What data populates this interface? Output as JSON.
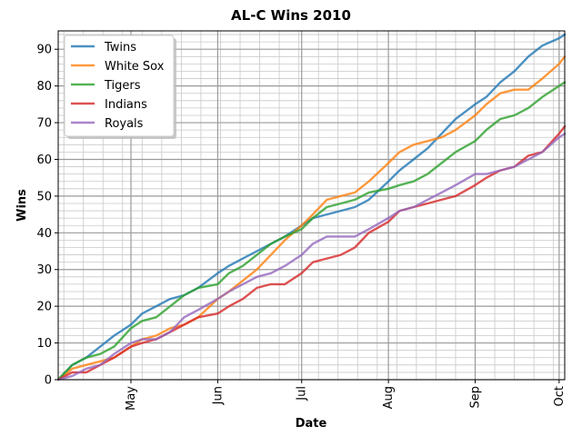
{
  "chart_data": {
    "type": "line",
    "title": "AL-C Wins 2010",
    "xlabel": "Date",
    "ylabel": "Wins",
    "x_axis": "date",
    "xlim": [
      "2010-04-05",
      "2010-10-03"
    ],
    "ylim": [
      0,
      95
    ],
    "xticks": [
      {
        "date": "2010-05-01",
        "label": "May"
      },
      {
        "date": "2010-06-01",
        "label": "Jun"
      },
      {
        "date": "2010-07-01",
        "label": "Jul"
      },
      {
        "date": "2010-08-01",
        "label": "Aug"
      },
      {
        "date": "2010-09-01",
        "label": "Sep"
      },
      {
        "date": "2010-10-01",
        "label": "Oct"
      }
    ],
    "yticks": [
      0,
      10,
      20,
      30,
      40,
      50,
      60,
      70,
      80,
      90
    ],
    "grid": true,
    "legend_position": "top-left",
    "series": [
      {
        "name": "Twins",
        "color": "#1f77b4",
        "points": [
          [
            "2010-04-05",
            0
          ],
          [
            "2010-04-10",
            4
          ],
          [
            "2010-04-15",
            6
          ],
          [
            "2010-04-20",
            9
          ],
          [
            "2010-04-25",
            12
          ],
          [
            "2010-05-01",
            15
          ],
          [
            "2010-05-05",
            18
          ],
          [
            "2010-05-10",
            20
          ],
          [
            "2010-05-15",
            22
          ],
          [
            "2010-05-20",
            23
          ],
          [
            "2010-05-25",
            25
          ],
          [
            "2010-06-01",
            29
          ],
          [
            "2010-06-05",
            31
          ],
          [
            "2010-06-10",
            33
          ],
          [
            "2010-06-15",
            35
          ],
          [
            "2010-06-20",
            37
          ],
          [
            "2010-06-25",
            39
          ],
          [
            "2010-07-01",
            42
          ],
          [
            "2010-07-05",
            44
          ],
          [
            "2010-07-10",
            45
          ],
          [
            "2010-07-15",
            46
          ],
          [
            "2010-07-20",
            47
          ],
          [
            "2010-07-25",
            49
          ],
          [
            "2010-08-01",
            54
          ],
          [
            "2010-08-05",
            57
          ],
          [
            "2010-08-10",
            60
          ],
          [
            "2010-08-15",
            63
          ],
          [
            "2010-08-20",
            67
          ],
          [
            "2010-08-25",
            71
          ],
          [
            "2010-09-01",
            75
          ],
          [
            "2010-09-05",
            77
          ],
          [
            "2010-09-10",
            81
          ],
          [
            "2010-09-15",
            84
          ],
          [
            "2010-09-20",
            88
          ],
          [
            "2010-09-25",
            91
          ],
          [
            "2010-10-01",
            93
          ],
          [
            "2010-10-03",
            94
          ]
        ]
      },
      {
        "name": "White Sox",
        "color": "#ff7f0e",
        "points": [
          [
            "2010-04-05",
            0
          ],
          [
            "2010-04-10",
            3
          ],
          [
            "2010-04-15",
            4
          ],
          [
            "2010-04-20",
            5
          ],
          [
            "2010-04-25",
            6
          ],
          [
            "2010-05-01",
            9
          ],
          [
            "2010-05-05",
            11
          ],
          [
            "2010-05-10",
            12
          ],
          [
            "2010-05-15",
            14
          ],
          [
            "2010-05-20",
            15
          ],
          [
            "2010-05-25",
            17
          ],
          [
            "2010-06-01",
            22
          ],
          [
            "2010-06-05",
            24
          ],
          [
            "2010-06-10",
            27
          ],
          [
            "2010-06-15",
            30
          ],
          [
            "2010-06-20",
            34
          ],
          [
            "2010-06-25",
            38
          ],
          [
            "2010-07-01",
            42
          ],
          [
            "2010-07-05",
            45
          ],
          [
            "2010-07-10",
            49
          ],
          [
            "2010-07-15",
            50
          ],
          [
            "2010-07-20",
            51
          ],
          [
            "2010-07-25",
            54
          ],
          [
            "2010-08-01",
            59
          ],
          [
            "2010-08-05",
            62
          ],
          [
            "2010-08-10",
            64
          ],
          [
            "2010-08-15",
            65
          ],
          [
            "2010-08-20",
            66
          ],
          [
            "2010-08-25",
            68
          ],
          [
            "2010-09-01",
            72
          ],
          [
            "2010-09-05",
            75
          ],
          [
            "2010-09-10",
            78
          ],
          [
            "2010-09-15",
            79
          ],
          [
            "2010-09-20",
            79
          ],
          [
            "2010-09-25",
            82
          ],
          [
            "2010-10-01",
            86
          ],
          [
            "2010-10-03",
            88
          ]
        ]
      },
      {
        "name": "Tigers",
        "color": "#2ca02c",
        "points": [
          [
            "2010-04-05",
            0
          ],
          [
            "2010-04-10",
            4
          ],
          [
            "2010-04-15",
            6
          ],
          [
            "2010-04-20",
            7
          ],
          [
            "2010-04-25",
            9
          ],
          [
            "2010-05-01",
            14
          ],
          [
            "2010-05-05",
            16
          ],
          [
            "2010-05-10",
            17
          ],
          [
            "2010-05-15",
            20
          ],
          [
            "2010-05-20",
            23
          ],
          [
            "2010-05-25",
            25
          ],
          [
            "2010-06-01",
            26
          ],
          [
            "2010-06-05",
            29
          ],
          [
            "2010-06-10",
            31
          ],
          [
            "2010-06-15",
            34
          ],
          [
            "2010-06-20",
            37
          ],
          [
            "2010-06-25",
            39
          ],
          [
            "2010-07-01",
            41
          ],
          [
            "2010-07-05",
            44
          ],
          [
            "2010-07-10",
            47
          ],
          [
            "2010-07-15",
            48
          ],
          [
            "2010-07-20",
            49
          ],
          [
            "2010-07-25",
            51
          ],
          [
            "2010-08-01",
            52
          ],
          [
            "2010-08-05",
            53
          ],
          [
            "2010-08-10",
            54
          ],
          [
            "2010-08-15",
            56
          ],
          [
            "2010-08-20",
            59
          ],
          [
            "2010-08-25",
            62
          ],
          [
            "2010-09-01",
            65
          ],
          [
            "2010-09-05",
            68
          ],
          [
            "2010-09-10",
            71
          ],
          [
            "2010-09-15",
            72
          ],
          [
            "2010-09-20",
            74
          ],
          [
            "2010-09-25",
            77
          ],
          [
            "2010-10-01",
            80
          ],
          [
            "2010-10-03",
            81
          ]
        ]
      },
      {
        "name": "Indians",
        "color": "#d62728",
        "points": [
          [
            "2010-04-05",
            0
          ],
          [
            "2010-04-10",
            2
          ],
          [
            "2010-04-15",
            2
          ],
          [
            "2010-04-20",
            4
          ],
          [
            "2010-04-25",
            6
          ],
          [
            "2010-05-01",
            9
          ],
          [
            "2010-05-05",
            10
          ],
          [
            "2010-05-10",
            11
          ],
          [
            "2010-05-15",
            13
          ],
          [
            "2010-05-20",
            15
          ],
          [
            "2010-05-25",
            17
          ],
          [
            "2010-06-01",
            18
          ],
          [
            "2010-06-05",
            20
          ],
          [
            "2010-06-10",
            22
          ],
          [
            "2010-06-15",
            25
          ],
          [
            "2010-06-20",
            26
          ],
          [
            "2010-06-25",
            26
          ],
          [
            "2010-07-01",
            29
          ],
          [
            "2010-07-05",
            32
          ],
          [
            "2010-07-10",
            33
          ],
          [
            "2010-07-15",
            34
          ],
          [
            "2010-07-20",
            36
          ],
          [
            "2010-07-25",
            40
          ],
          [
            "2010-08-01",
            43
          ],
          [
            "2010-08-05",
            46
          ],
          [
            "2010-08-10",
            47
          ],
          [
            "2010-08-15",
            48
          ],
          [
            "2010-08-20",
            49
          ],
          [
            "2010-08-25",
            50
          ],
          [
            "2010-09-01",
            53
          ],
          [
            "2010-09-05",
            55
          ],
          [
            "2010-09-10",
            57
          ],
          [
            "2010-09-15",
            58
          ],
          [
            "2010-09-20",
            61
          ],
          [
            "2010-09-25",
            62
          ],
          [
            "2010-10-01",
            67
          ],
          [
            "2010-10-03",
            69
          ]
        ]
      },
      {
        "name": "Royals",
        "color": "#9467bd",
        "points": [
          [
            "2010-04-05",
            0
          ],
          [
            "2010-04-10",
            1
          ],
          [
            "2010-04-15",
            3
          ],
          [
            "2010-04-20",
            4
          ],
          [
            "2010-04-25",
            7
          ],
          [
            "2010-05-01",
            10
          ],
          [
            "2010-05-05",
            11
          ],
          [
            "2010-05-10",
            11
          ],
          [
            "2010-05-15",
            13
          ],
          [
            "2010-05-20",
            17
          ],
          [
            "2010-05-25",
            19
          ],
          [
            "2010-06-01",
            22
          ],
          [
            "2010-06-05",
            24
          ],
          [
            "2010-06-10",
            26
          ],
          [
            "2010-06-15",
            28
          ],
          [
            "2010-06-20",
            29
          ],
          [
            "2010-06-25",
            31
          ],
          [
            "2010-07-01",
            34
          ],
          [
            "2010-07-05",
            37
          ],
          [
            "2010-07-10",
            39
          ],
          [
            "2010-07-15",
            39
          ],
          [
            "2010-07-20",
            39
          ],
          [
            "2010-07-25",
            41
          ],
          [
            "2010-08-01",
            44
          ],
          [
            "2010-08-05",
            46
          ],
          [
            "2010-08-10",
            47
          ],
          [
            "2010-08-15",
            49
          ],
          [
            "2010-08-20",
            51
          ],
          [
            "2010-08-25",
            53
          ],
          [
            "2010-09-01",
            56
          ],
          [
            "2010-09-05",
            56
          ],
          [
            "2010-09-10",
            57
          ],
          [
            "2010-09-15",
            58
          ],
          [
            "2010-09-20",
            60
          ],
          [
            "2010-09-25",
            62
          ],
          [
            "2010-10-01",
            66
          ],
          [
            "2010-10-03",
            67
          ]
        ]
      }
    ]
  }
}
